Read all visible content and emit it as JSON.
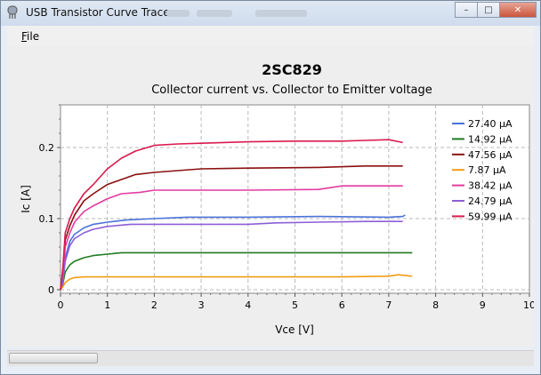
{
  "window": {
    "title": "USB Transistor Curve Tracer",
    "minimize_label": "–",
    "maximize_label": "□",
    "close_label": "✕"
  },
  "menu": {
    "file_label": "File"
  },
  "chart_data": {
    "type": "line",
    "title": "2SC829",
    "subtitle": "Collector current vs. Collector to Emitter voltage",
    "xlabel": "Vce [V]",
    "ylabel": "Ic [A]",
    "xlim": [
      0,
      10
    ],
    "ylim": [
      -0.005,
      0.26
    ],
    "xticks": [
      0,
      1,
      2,
      3,
      4,
      5,
      6,
      7,
      8,
      9,
      10
    ],
    "yticks": [
      0,
      0.1,
      0.2
    ],
    "ytick_labels": [
      "0",
      "0.1",
      "0.2"
    ],
    "grid": true,
    "legend_position": "top-right",
    "series": [
      {
        "name": "27.40 µA",
        "color": "#4a72d9",
        "x": [
          0,
          0.05,
          0.1,
          0.2,
          0.3,
          0.5,
          0.7,
          1.0,
          1.4,
          2.0,
          2.7,
          4.0,
          5.5,
          7.0,
          7.3,
          7.35
        ],
        "y": [
          0,
          0.01,
          0.045,
          0.068,
          0.078,
          0.087,
          0.092,
          0.095,
          0.098,
          0.1,
          0.102,
          0.102,
          0.103,
          0.102,
          0.103,
          0.105
        ]
      },
      {
        "name": "14.92 µA",
        "color": "#1f7a1f",
        "x": [
          0,
          0.05,
          0.1,
          0.2,
          0.3,
          0.5,
          0.7,
          1.0,
          1.3,
          2.0,
          4.0,
          6.0,
          7.5
        ],
        "y": [
          0,
          0.008,
          0.025,
          0.035,
          0.04,
          0.045,
          0.048,
          0.05,
          0.052,
          0.052,
          0.052,
          0.052,
          0.052
        ]
      },
      {
        "name": "47.56 µA",
        "color": "#8b1010",
        "x": [
          0,
          0.05,
          0.1,
          0.2,
          0.3,
          0.5,
          0.7,
          1.0,
          1.3,
          1.6,
          2.0,
          3.0,
          4.0,
          5.5,
          6.5,
          7.3
        ],
        "y": [
          0,
          0.02,
          0.07,
          0.09,
          0.105,
          0.125,
          0.135,
          0.148,
          0.155,
          0.162,
          0.165,
          0.17,
          0.171,
          0.172,
          0.174,
          0.174
        ]
      },
      {
        "name": "7.87 µA",
        "color": "#f39c12",
        "x": [
          0,
          0.05,
          0.1,
          0.2,
          0.3,
          0.5,
          1.0,
          2.0,
          4.0,
          6.0,
          7.0,
          7.2,
          7.5
        ],
        "y": [
          0,
          0.004,
          0.01,
          0.015,
          0.017,
          0.018,
          0.018,
          0.018,
          0.018,
          0.018,
          0.019,
          0.021,
          0.019
        ]
      },
      {
        "name": "38.42 µA",
        "color": "#e33aa0",
        "x": [
          0,
          0.05,
          0.1,
          0.2,
          0.3,
          0.5,
          0.7,
          1.0,
          1.3,
          1.7,
          2.0,
          3.0,
          4.0,
          5.5,
          6.0,
          7.3
        ],
        "y": [
          0,
          0.015,
          0.06,
          0.08,
          0.095,
          0.11,
          0.118,
          0.128,
          0.135,
          0.137,
          0.14,
          0.14,
          0.14,
          0.141,
          0.146,
          0.146
        ]
      },
      {
        "name": "24.79 µA",
        "color": "#8c5fd6",
        "x": [
          0,
          0.05,
          0.1,
          0.2,
          0.3,
          0.5,
          0.7,
          1.0,
          1.5,
          2.0,
          3.0,
          4.0,
          4.6,
          5.5,
          6.5,
          7.3
        ],
        "y": [
          0,
          0.01,
          0.04,
          0.062,
          0.072,
          0.08,
          0.085,
          0.089,
          0.092,
          0.092,
          0.092,
          0.092,
          0.094,
          0.095,
          0.096,
          0.096
        ]
      },
      {
        "name": "59.99 µA",
        "color": "#d91a4d",
        "x": [
          0,
          0.05,
          0.1,
          0.2,
          0.3,
          0.5,
          0.7,
          1.0,
          1.3,
          1.6,
          2.0,
          2.5,
          3.0,
          4.0,
          5.0,
          6.0,
          6.5,
          7.0,
          7.3
        ],
        "y": [
          0,
          0.03,
          0.08,
          0.1,
          0.115,
          0.135,
          0.148,
          0.17,
          0.185,
          0.195,
          0.203,
          0.205,
          0.206,
          0.208,
          0.209,
          0.209,
          0.21,
          0.211,
          0.207
        ]
      }
    ]
  }
}
